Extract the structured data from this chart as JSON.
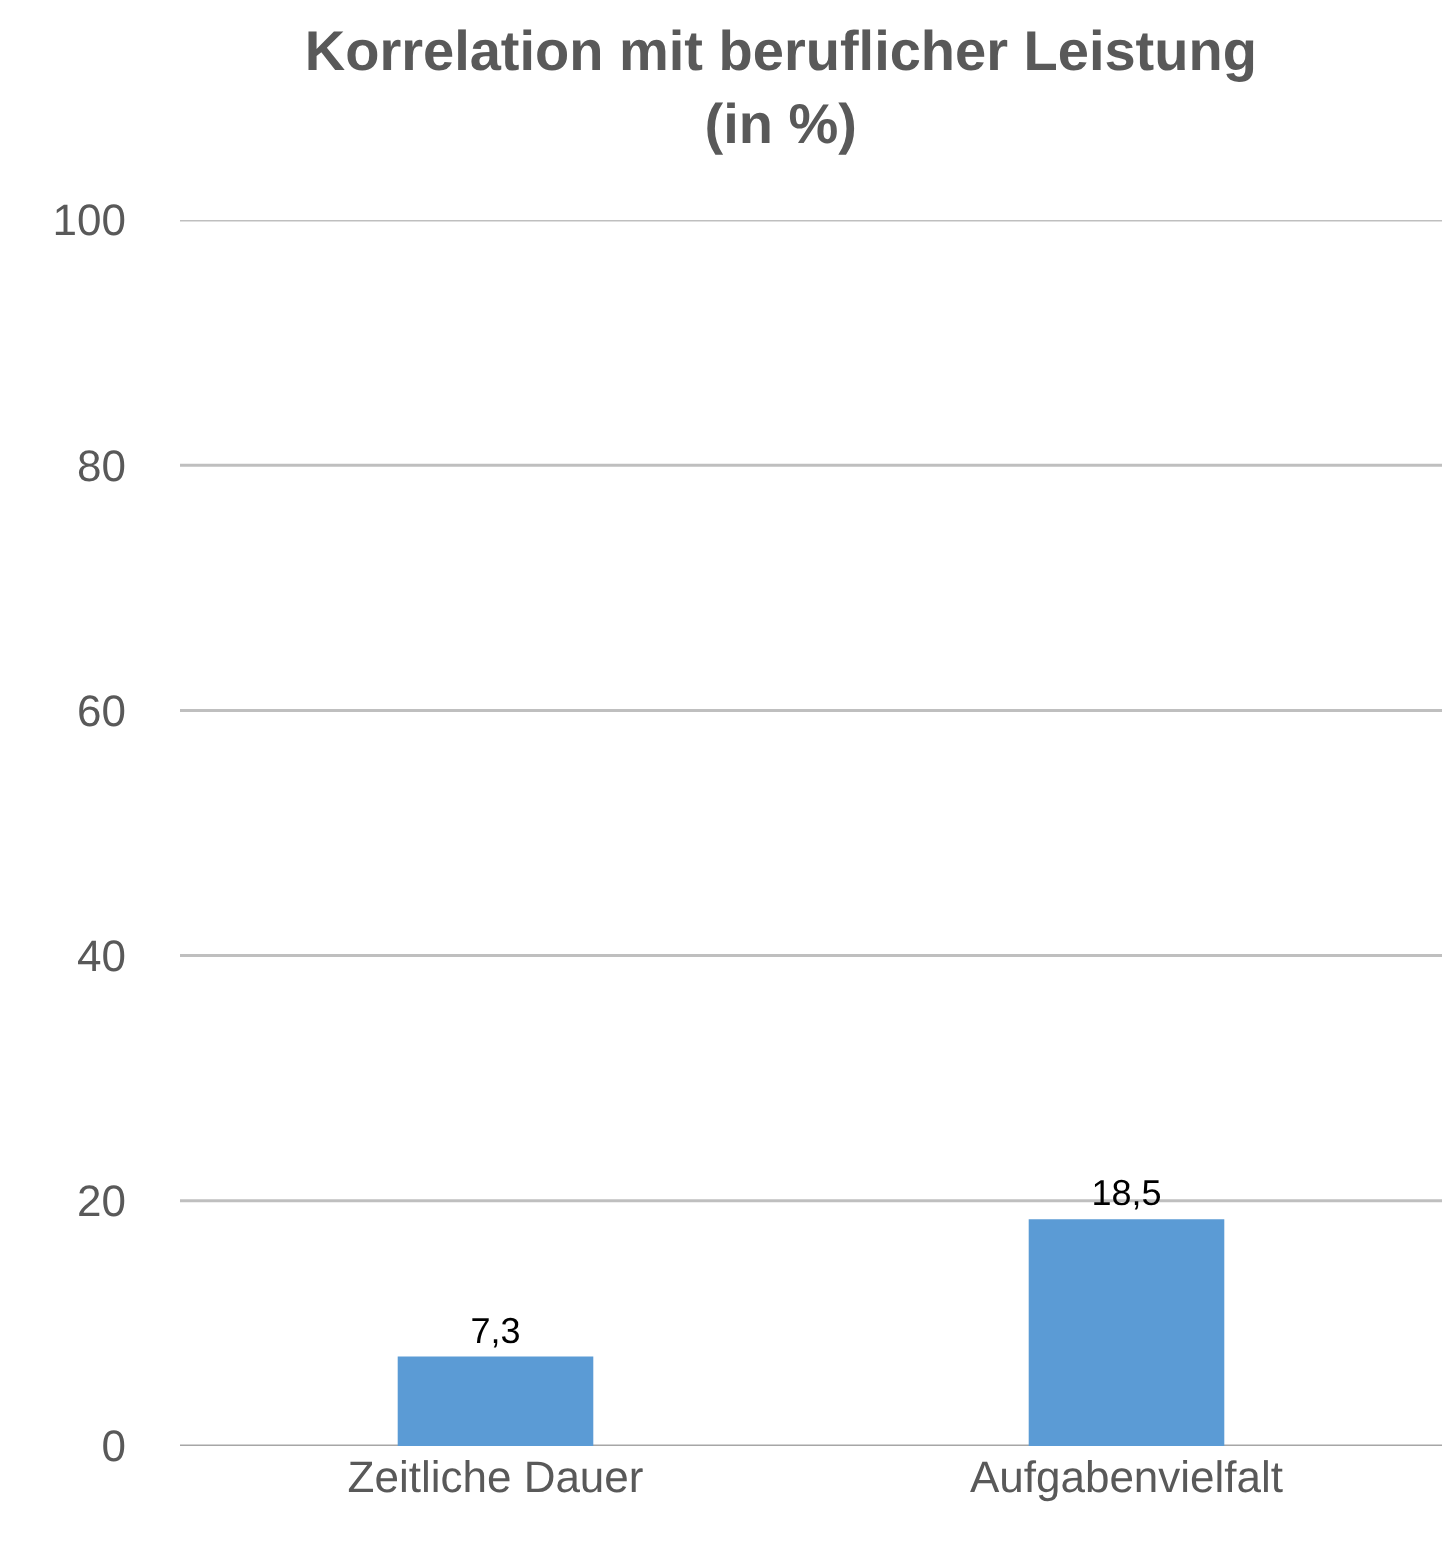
{
  "chart_data": {
    "type": "bar",
    "title": "Korrelation mit beruflicher Leistung\n(in %)",
    "categories": [
      "Zeitliche Dauer",
      "Aufgabenvielfalt"
    ],
    "values": [
      7.3,
      18.5
    ],
    "value_labels": [
      "7,3",
      "18,5"
    ],
    "color": "#5b9bd5",
    "ylim": [
      0,
      100
    ],
    "yticks": [
      0,
      20,
      40,
      60,
      80,
      100
    ],
    "grid": "y",
    "legend": false
  }
}
